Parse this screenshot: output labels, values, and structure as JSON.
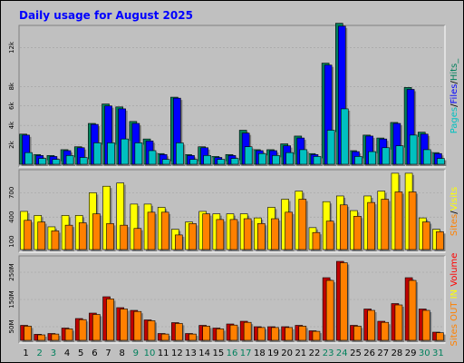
{
  "chart_data": {
    "type": "bar",
    "title": "Daily usage for August 2025",
    "categories": [
      "1",
      "2",
      "3",
      "4",
      "5",
      "6",
      "7",
      "8",
      "9",
      "10",
      "11",
      "12",
      "13",
      "14",
      "15",
      "16",
      "17",
      "18",
      "19",
      "20",
      "21",
      "22",
      "23",
      "24",
      "25",
      "26",
      "27",
      "28",
      "29",
      "30",
      "31"
    ],
    "weekend_days": [
      "2",
      "3",
      "9",
      "10",
      "16",
      "17",
      "23",
      "24",
      "30",
      "31"
    ],
    "colors": {
      "title": "#0000ff",
      "weekday_label": "#000000",
      "weekend_label": "#00805c",
      "hits": "#00805c",
      "files": "#0000ff",
      "pages": "#00c0c0",
      "visits": "#ffff00",
      "sites": "#ff8000",
      "in": "#ff8000",
      "out": "#c00000",
      "volume": "#ff0000",
      "plot_bg": "#c0c0c0"
    },
    "panels": {
      "top": {
        "legend": [
          "Hits",
          "Files",
          "Pages"
        ],
        "legend_separator": " / ",
        "legend_suffix": "_",
        "y_ticks": [
          2000,
          4000,
          6000,
          8000,
          12000
        ],
        "y_tick_labels": [
          "2k",
          "4k",
          "6k",
          "8k",
          "12k"
        ],
        "ylim": [
          0,
          14000
        ],
        "series": [
          {
            "name": "Hits",
            "values": [
              3100,
              1000,
              900,
              1500,
              1800,
              4200,
              6200,
              5900,
              4400,
              2600,
              1100,
              6900,
              1000,
              1800,
              800,
              1000,
              3500,
              1500,
              1500,
              2100,
              2900,
              1100,
              10400,
              14500,
              1400,
              3000,
              2700,
              4300,
              7900,
              3300,
              1200
            ]
          },
          {
            "name": "Files",
            "values": [
              3000,
              900,
              800,
              1400,
              1700,
              4100,
              6000,
              5700,
              4200,
              2400,
              1000,
              6800,
              900,
              1700,
              700,
              900,
              3200,
              1400,
              1400,
              1900,
              2700,
              1000,
              10200,
              14200,
              1300,
              2900,
              2600,
              4200,
              7700,
              3100,
              1100
            ]
          },
          {
            "name": "Pages",
            "values": [
              1200,
              600,
              500,
              900,
              700,
              2200,
              2200,
              2600,
              2200,
              1400,
              500,
              2200,
              500,
              900,
              500,
              600,
              1800,
              1100,
              900,
              1200,
              1500,
              800,
              3500,
              5700,
              800,
              1300,
              1700,
              1900,
              3000,
              1500,
              600
            ]
          }
        ]
      },
      "middle": {
        "legend": [
          "Visits",
          "Sites"
        ],
        "legend_separator": " / ",
        "y_ticks": [
          100,
          400,
          700
        ],
        "y_tick_labels": [
          "100",
          "400",
          "700"
        ],
        "ylim": [
          0,
          950
        ],
        "series": [
          {
            "name": "Visits",
            "values": [
              470,
              420,
              280,
              420,
              420,
              700,
              780,
              820,
              560,
              560,
              520,
              250,
              340,
              470,
              440,
              440,
              440,
              390,
              520,
              620,
              720,
              270,
              590,
              660,
              480,
              660,
              720,
              940,
              940,
              390,
              250
            ]
          },
          {
            "name": "Sites",
            "values": [
              360,
              340,
              230,
              300,
              330,
              440,
              320,
              300,
              260,
              460,
              460,
              180,
              320,
              440,
              370,
              370,
              380,
              320,
              380,
              460,
              620,
              210,
              350,
              550,
              410,
              580,
              620,
              710,
              710,
              340,
              220
            ]
          }
        ]
      },
      "bottom": {
        "legend": [
          "Volume",
          "IN",
          "OUT",
          "Sites"
        ],
        "y_ticks": [
          50,
          150,
          250
        ],
        "y_tick_labels": [
          "50M",
          "150M",
          "250M"
        ],
        "ylim": [
          0,
          300
        ],
        "series": [
          {
            "name": "Volume",
            "values": [
              55,
              22,
              25,
              45,
              80,
              100,
              160,
              120,
              110,
              75,
              25,
              65,
              25,
              55,
              45,
              60,
              70,
              50,
              50,
              50,
              55,
              35,
              230,
              290,
              55,
              115,
              70,
              135,
              230,
              115,
              30
            ]
          },
          {
            "name": "IN",
            "values": [
              52,
              20,
              23,
              42,
              76,
              95,
              152,
              115,
              106,
              72,
              23,
              62,
              23,
              52,
              42,
              56,
              66,
              47,
              47,
              47,
              52,
              33,
              220,
              285,
              52,
              110,
              66,
              130,
              220,
              110,
              28
            ]
          }
        ]
      }
    }
  }
}
